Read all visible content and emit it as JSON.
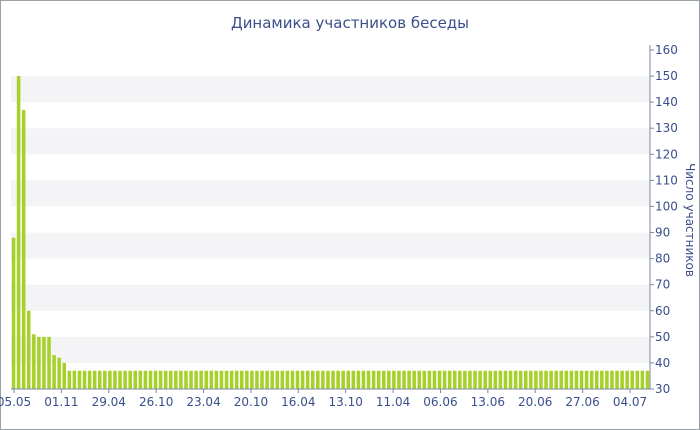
{
  "chart_data": {
    "type": "bar",
    "title": "Динамика участников беседы",
    "ylabel": "Число участников",
    "xlabel": "",
    "ylim": [
      30,
      160
    ],
    "y_ticks": [
      30,
      40,
      50,
      60,
      70,
      80,
      90,
      100,
      110,
      120,
      130,
      140,
      150,
      160
    ],
    "y_axis_position": "right",
    "x_tick_labels": [
      "05.05",
      "01.11",
      "29.04",
      "26.10",
      "23.04",
      "20.10",
      "16.04",
      "13.10",
      "11.04",
      "06.06",
      "13.06",
      "20.06",
      "27.06",
      "04.07"
    ],
    "grid": "alternating horizontal bands",
    "bar_color": "#a8d02a",
    "values": [
      88,
      150,
      137,
      60,
      51,
      50,
      50,
      50,
      43,
      42,
      40,
      37,
      37,
      37,
      37,
      37,
      37,
      37,
      37,
      37,
      37,
      37,
      37,
      37,
      37,
      37,
      37,
      37,
      37,
      37,
      37,
      37,
      37,
      37,
      37,
      37,
      37,
      37,
      37,
      37,
      37,
      37,
      37,
      37,
      37,
      37,
      37,
      37,
      37,
      37,
      37,
      37,
      37,
      37,
      37,
      37,
      37,
      37,
      37,
      37,
      37,
      37,
      37,
      37,
      37,
      37,
      37,
      37,
      37,
      37,
      37,
      37,
      37,
      37,
      37,
      37,
      37,
      37,
      37,
      37,
      37,
      37,
      37,
      37,
      37,
      37,
      37,
      37,
      37,
      37,
      37,
      37,
      37,
      37,
      37,
      37,
      37,
      37,
      37,
      37,
      37,
      37,
      37,
      37,
      37,
      37,
      37,
      37,
      37,
      37,
      37,
      37,
      37,
      37,
      37,
      37,
      37,
      37,
      37,
      37,
      37,
      37,
      37,
      37,
      37,
      37
    ]
  }
}
